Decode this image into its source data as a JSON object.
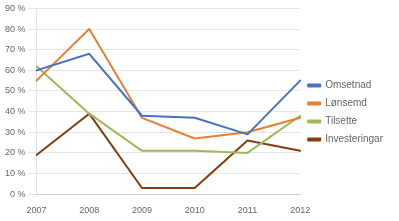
{
  "chart_data": {
    "type": "line",
    "categories": [
      "2007",
      "2008",
      "2009",
      "2010",
      "2011",
      "2012"
    ],
    "series": [
      {
        "name": "Omsetnad",
        "color": "#4472C4",
        "values": [
          60,
          68,
          38,
          37,
          29,
          55
        ]
      },
      {
        "name": "Lønsemd",
        "color": "#ED7D31",
        "values": [
          55,
          80,
          37,
          27,
          30,
          37
        ]
      },
      {
        "name": "Tilsette",
        "color": "#9BBB59",
        "values": [
          62,
          39,
          21,
          21,
          20,
          38
        ]
      },
      {
        "name": "Investeringar",
        "color": "#843C0C",
        "values": [
          19,
          39,
          3,
          3,
          26,
          21
        ]
      }
    ],
    "ylim": [
      0,
      90
    ],
    "yticks": [
      {
        "value": 0,
        "label": "0 %"
      },
      {
        "value": 10,
        "label": "10 %"
      },
      {
        "value": 20,
        "label": "20 %"
      },
      {
        "value": 30,
        "label": "30 %"
      },
      {
        "value": 40,
        "label": "40 %"
      },
      {
        "value": 50,
        "label": "50 %"
      },
      {
        "value": 60,
        "label": "60 %"
      },
      {
        "value": 70,
        "label": "70 %"
      },
      {
        "value": 80,
        "label": "80 %"
      },
      {
        "value": 90,
        "label": "90 %"
      }
    ],
    "grid": true,
    "legend": "right"
  }
}
